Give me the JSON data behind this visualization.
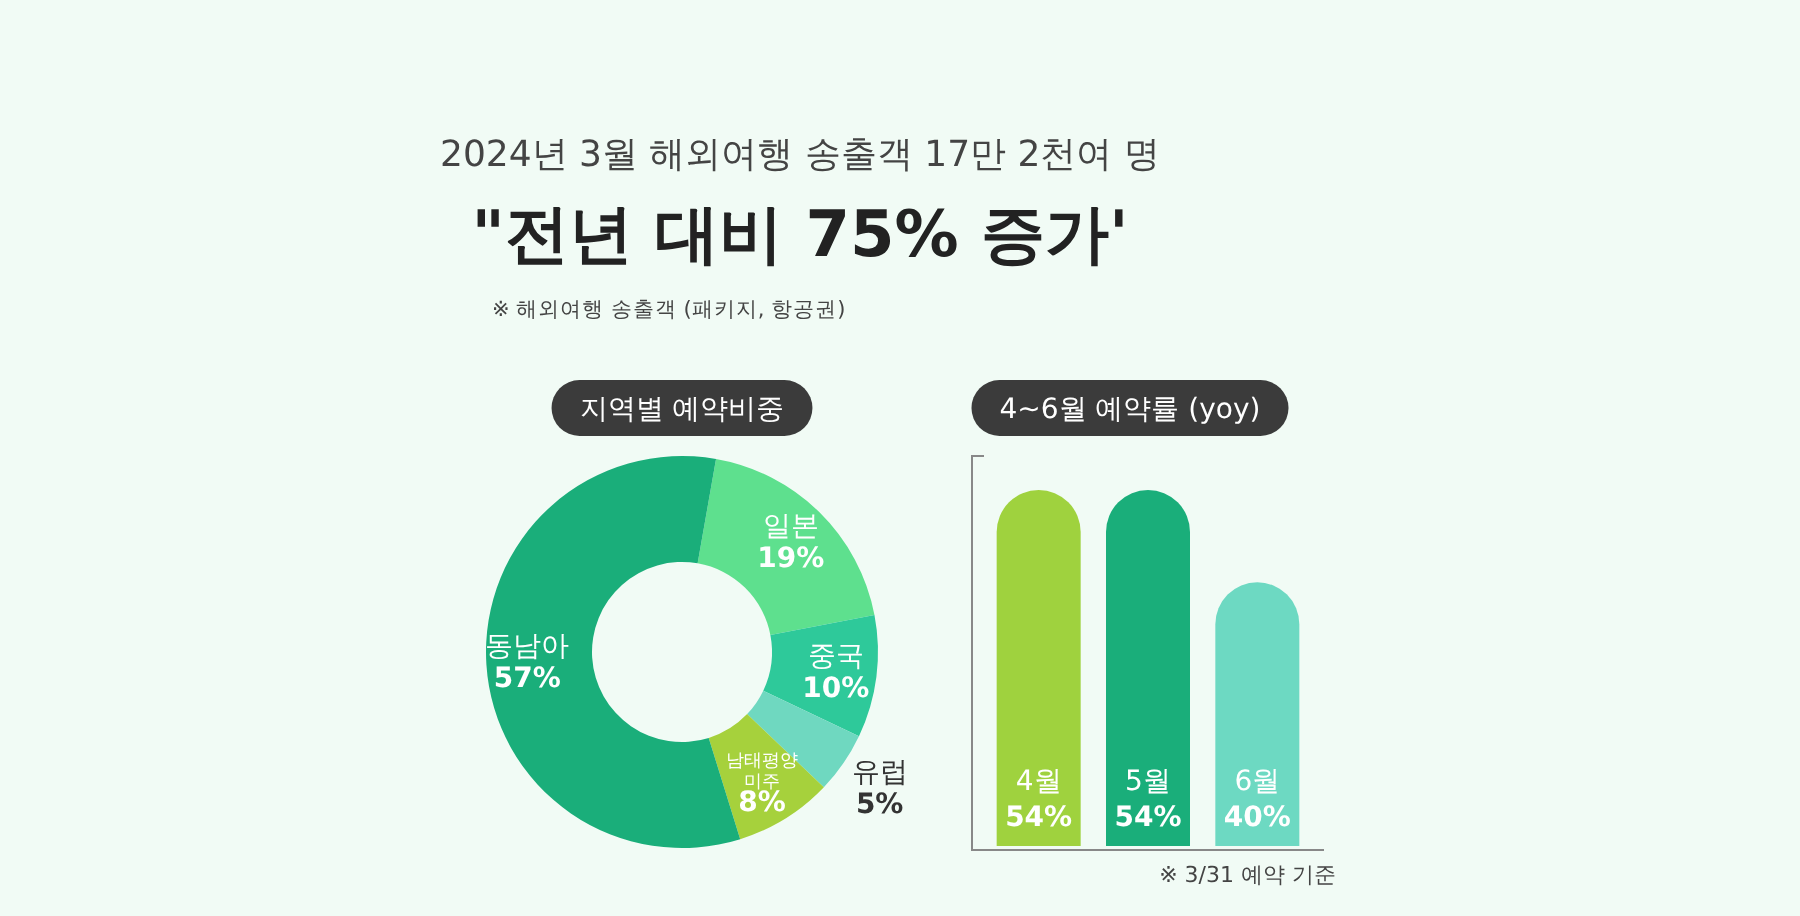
{
  "chart_data": [
    {
      "type": "other",
      "title": "\"전년 대비 75% 증가'",
      "subtitle": "2024년 3월 해외여행 송출객 17만 2천여 명",
      "annotations": [
        "※ 해외여행 송출객 (패키지, 항공권)"
      ]
    },
    {
      "type": "donut",
      "title": "지역별 예약비중",
      "categories": [
        "일본",
        "중국",
        "유럽",
        "남태평양 미주",
        "동남아"
      ],
      "values": [
        19,
        10,
        5,
        8,
        57
      ],
      "value_labels": [
        "19%",
        "10%",
        "5%",
        "8%",
        "57%"
      ],
      "colors": [
        "#5ee08e",
        "#2ec99a",
        "#6fd8c0",
        "#a6d13c",
        "#1aae7a"
      ]
    },
    {
      "type": "bar",
      "title": "4~6월 예약률 (yoy)",
      "categories": [
        "4월",
        "5월",
        "6월"
      ],
      "values": [
        54,
        54,
        40
      ],
      "value_labels": [
        "54%",
        "54%",
        "40%"
      ],
      "colors": [
        "#9fd23e",
        "#1aae7a",
        "#6dd9c2"
      ],
      "annotations": [
        "※ 3/31 예약 기준"
      ]
    }
  ]
}
